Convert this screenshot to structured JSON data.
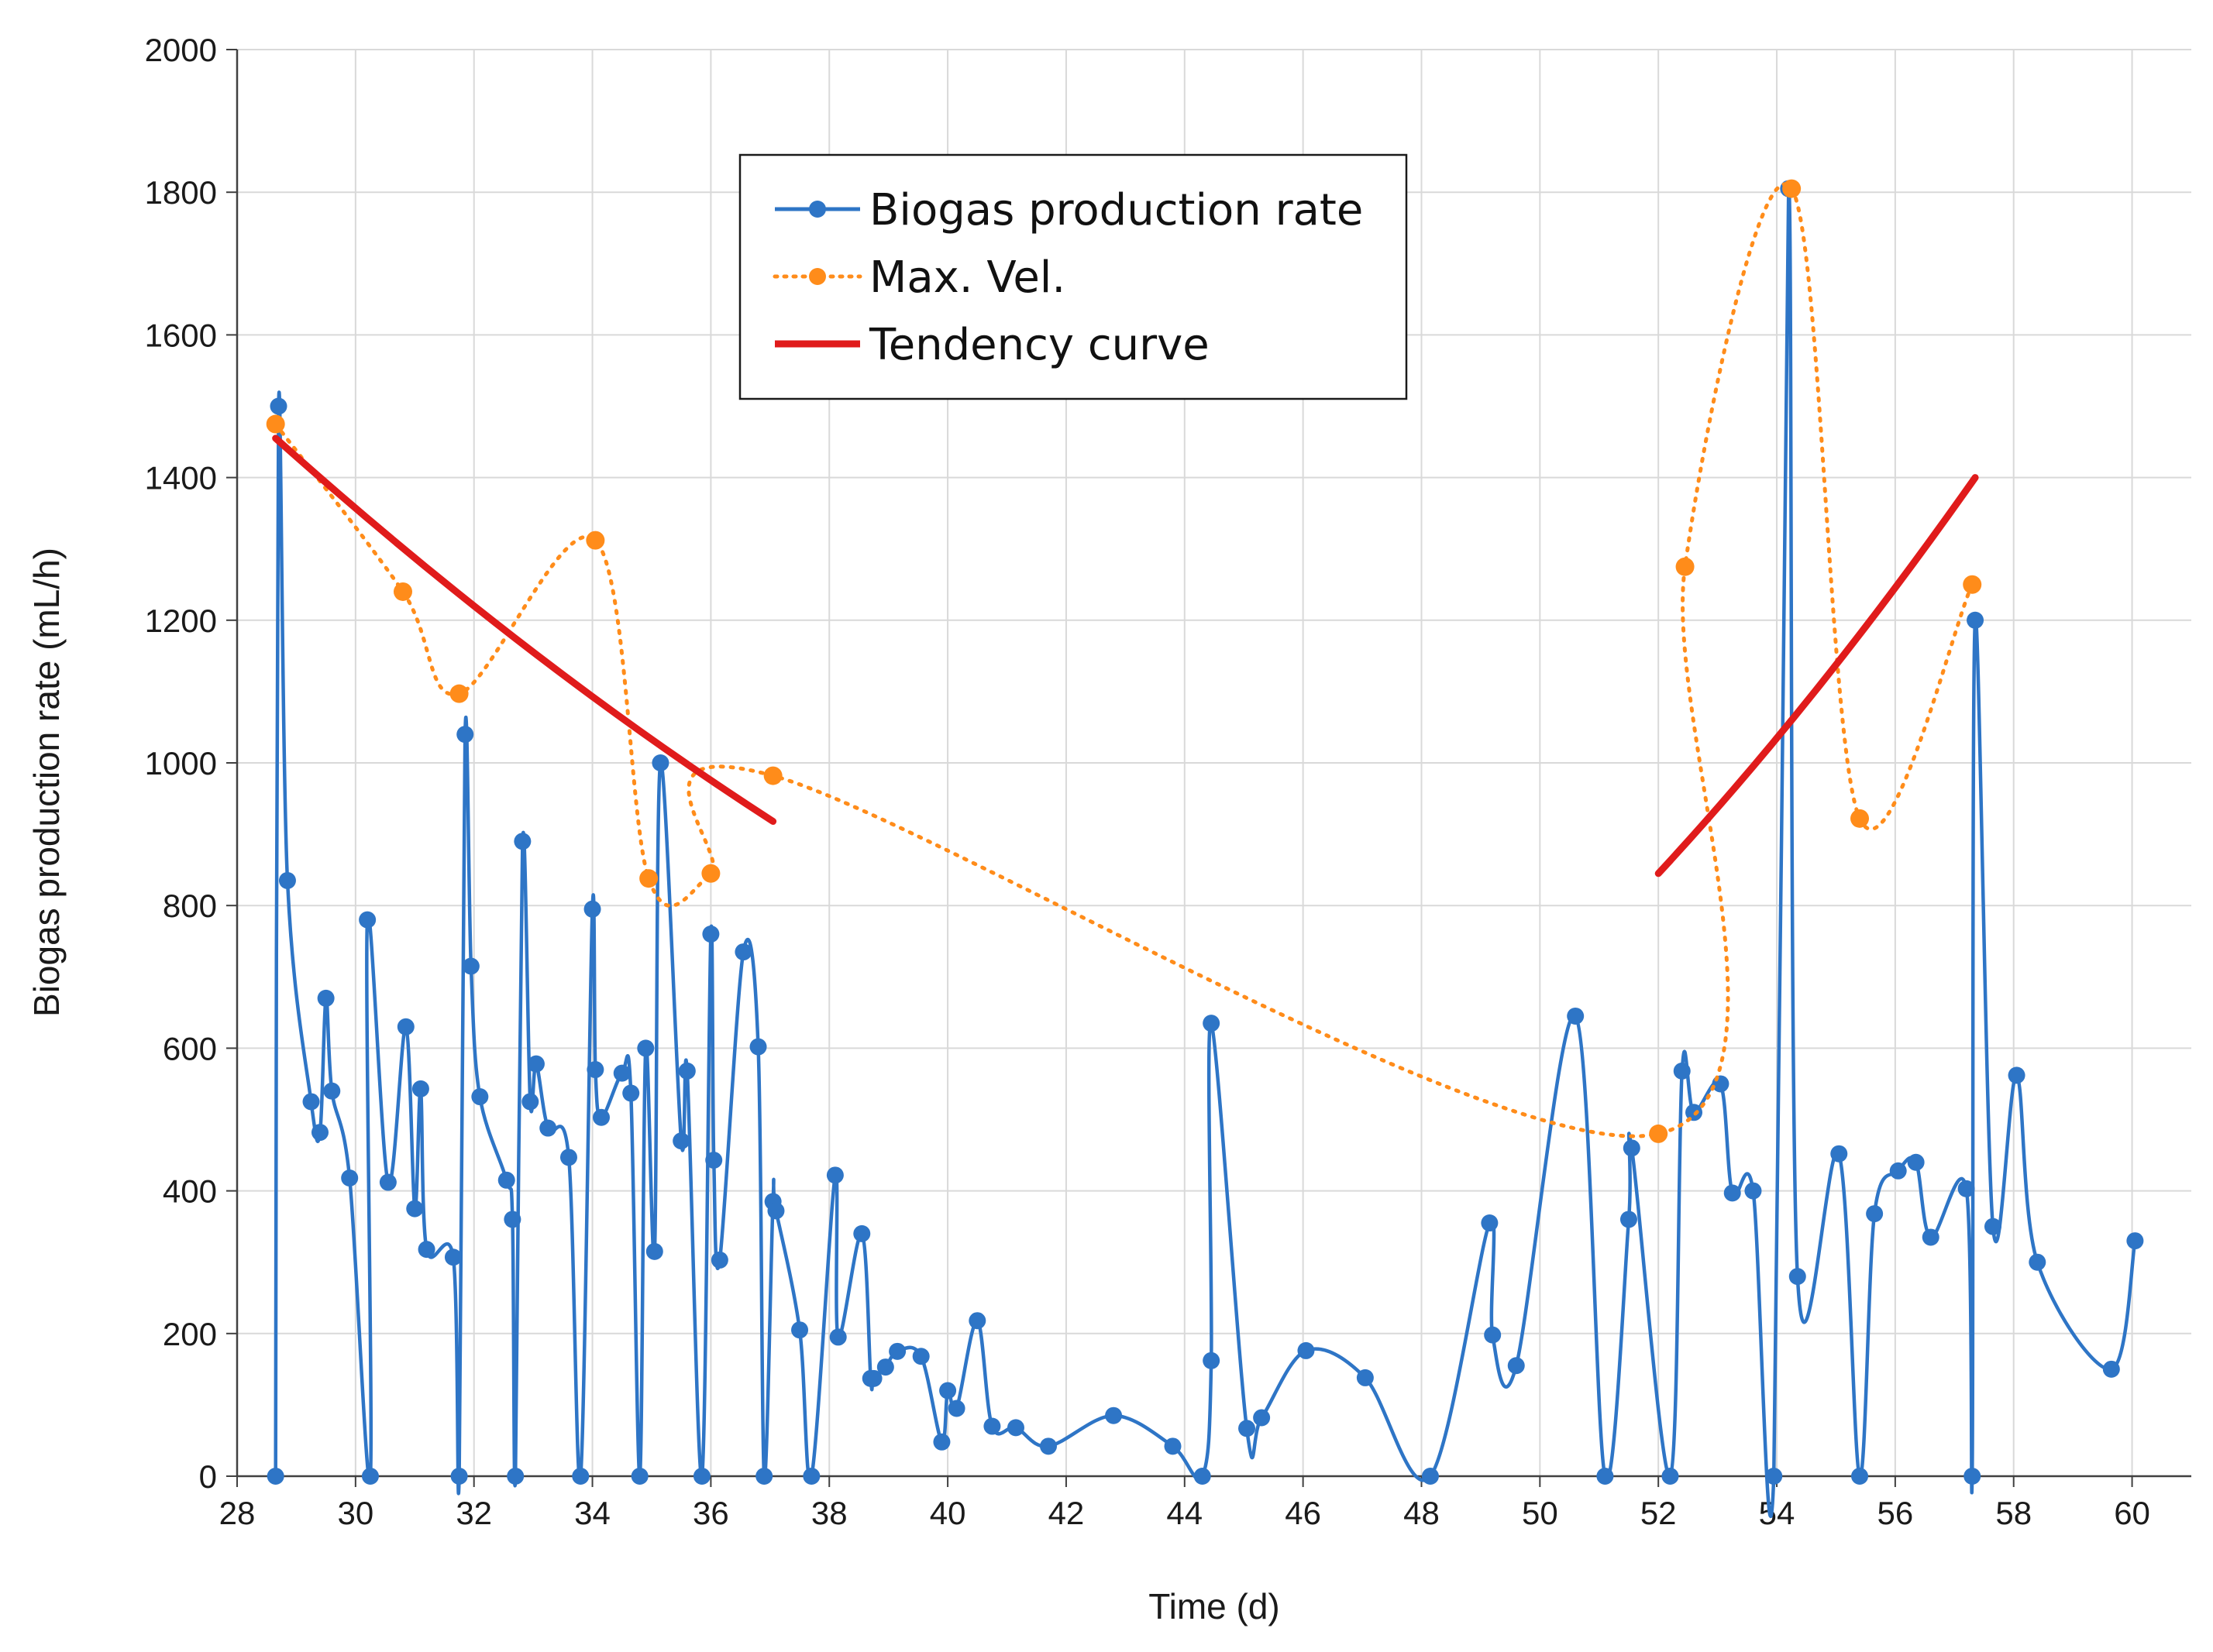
{
  "chart_data": {
    "type": "line",
    "title": "",
    "xlabel": "Time (d)",
    "ylabel": "Biogas production rate (mL/h)",
    "xlim": [
      28,
      61
    ],
    "ylim": [
      0,
      2000
    ],
    "x_ticks": [
      28,
      30,
      32,
      34,
      36,
      38,
      40,
      42,
      44,
      46,
      48,
      50,
      52,
      54,
      56,
      58,
      60
    ],
    "y_ticks": [
      0,
      200,
      400,
      600,
      800,
      1000,
      1200,
      1400,
      1600,
      1800,
      2000
    ],
    "grid": true,
    "legend_position": "top-center",
    "series": [
      {
        "name": "Biogas production rate",
        "color": "#2e75c6",
        "style": "solid-with-markers",
        "x": [
          28.65,
          28.7,
          28.85,
          29.25,
          29.4,
          29.5,
          29.6,
          29.9,
          30.25,
          30.2,
          30.55,
          30.85,
          31.0,
          31.1,
          31.2,
          31.65,
          31.75,
          31.85,
          31.95,
          32.1,
          32.55,
          32.65,
          32.7,
          32.82,
          32.95,
          33.05,
          33.25,
          33.6,
          33.8,
          34.0,
          34.05,
          34.15,
          34.5,
          34.65,
          34.8,
          34.9,
          35.05,
          35.15,
          35.5,
          35.6,
          35.85,
          36.0,
          36.05,
          36.15,
          36.55,
          36.8,
          36.9,
          37.05,
          37.1,
          37.5,
          37.7,
          38.1,
          38.15,
          38.55,
          38.7,
          38.75,
          38.95,
          39.15,
          39.55,
          39.9,
          40.0,
          40.15,
          40.5,
          40.75,
          41.15,
          41.7,
          42.8,
          43.8,
          44.3,
          44.45,
          44.45,
          45.05,
          45.3,
          46.05,
          47.05,
          48.15,
          49.15,
          49.2,
          49.6,
          50.6,
          51.1,
          51.5,
          51.55,
          52.2,
          52.4,
          52.6,
          53.05,
          53.25,
          53.6,
          53.95,
          54.2,
          54.35,
          55.05,
          55.4,
          55.65,
          56.05,
          56.35,
          56.6,
          57.2,
          57.3,
          57.35,
          57.65,
          58.05,
          58.4,
          59.65,
          60.05
        ],
        "y": [
          0,
          1500,
          835,
          525,
          482,
          670,
          540,
          418,
          0,
          780,
          412,
          630,
          375,
          543,
          318,
          307,
          0,
          1040,
          715,
          532,
          415,
          360,
          0,
          890,
          525,
          578,
          488,
          447,
          0,
          795,
          570,
          503,
          565,
          537,
          0,
          600,
          315,
          1000,
          470,
          568,
          0,
          760,
          443,
          303,
          735,
          602,
          0,
          385,
          372,
          205,
          0,
          422,
          195,
          340,
          137,
          137,
          153,
          175,
          168,
          48,
          120,
          95,
          218,
          70,
          68,
          42,
          85,
          42,
          0,
          162,
          635,
          67,
          82,
          176,
          138,
          0,
          355,
          198,
          155,
          645,
          0,
          360,
          460,
          0,
          568,
          510,
          550,
          397,
          400,
          0,
          1805,
          280,
          452,
          0,
          368,
          428,
          440,
          335,
          403,
          0,
          1200,
          350,
          562,
          300,
          150,
          330
        ]
      },
      {
        "name": "Max. Vel.",
        "color": "#ff8c1a",
        "style": "dotted-with-markers",
        "x": [
          28.65,
          30.8,
          31.75,
          34.05,
          34.95,
          36.0,
          37.05,
          52.0,
          52.45,
          54.25,
          55.4,
          57.3
        ],
        "y": [
          1475,
          1240,
          1097,
          1312,
          838,
          845,
          982,
          480,
          1275,
          1805,
          922,
          1250
        ]
      },
      {
        "name": "Tendency curve",
        "color": "#e01b1b",
        "style": "solid-thick",
        "segments": [
          {
            "x": [
              28.65,
              37.05
            ],
            "y": [
              1455,
              918
            ]
          },
          {
            "x": [
              52.0,
              57.35
            ],
            "y": [
              845,
              1400
            ]
          }
        ]
      }
    ]
  }
}
